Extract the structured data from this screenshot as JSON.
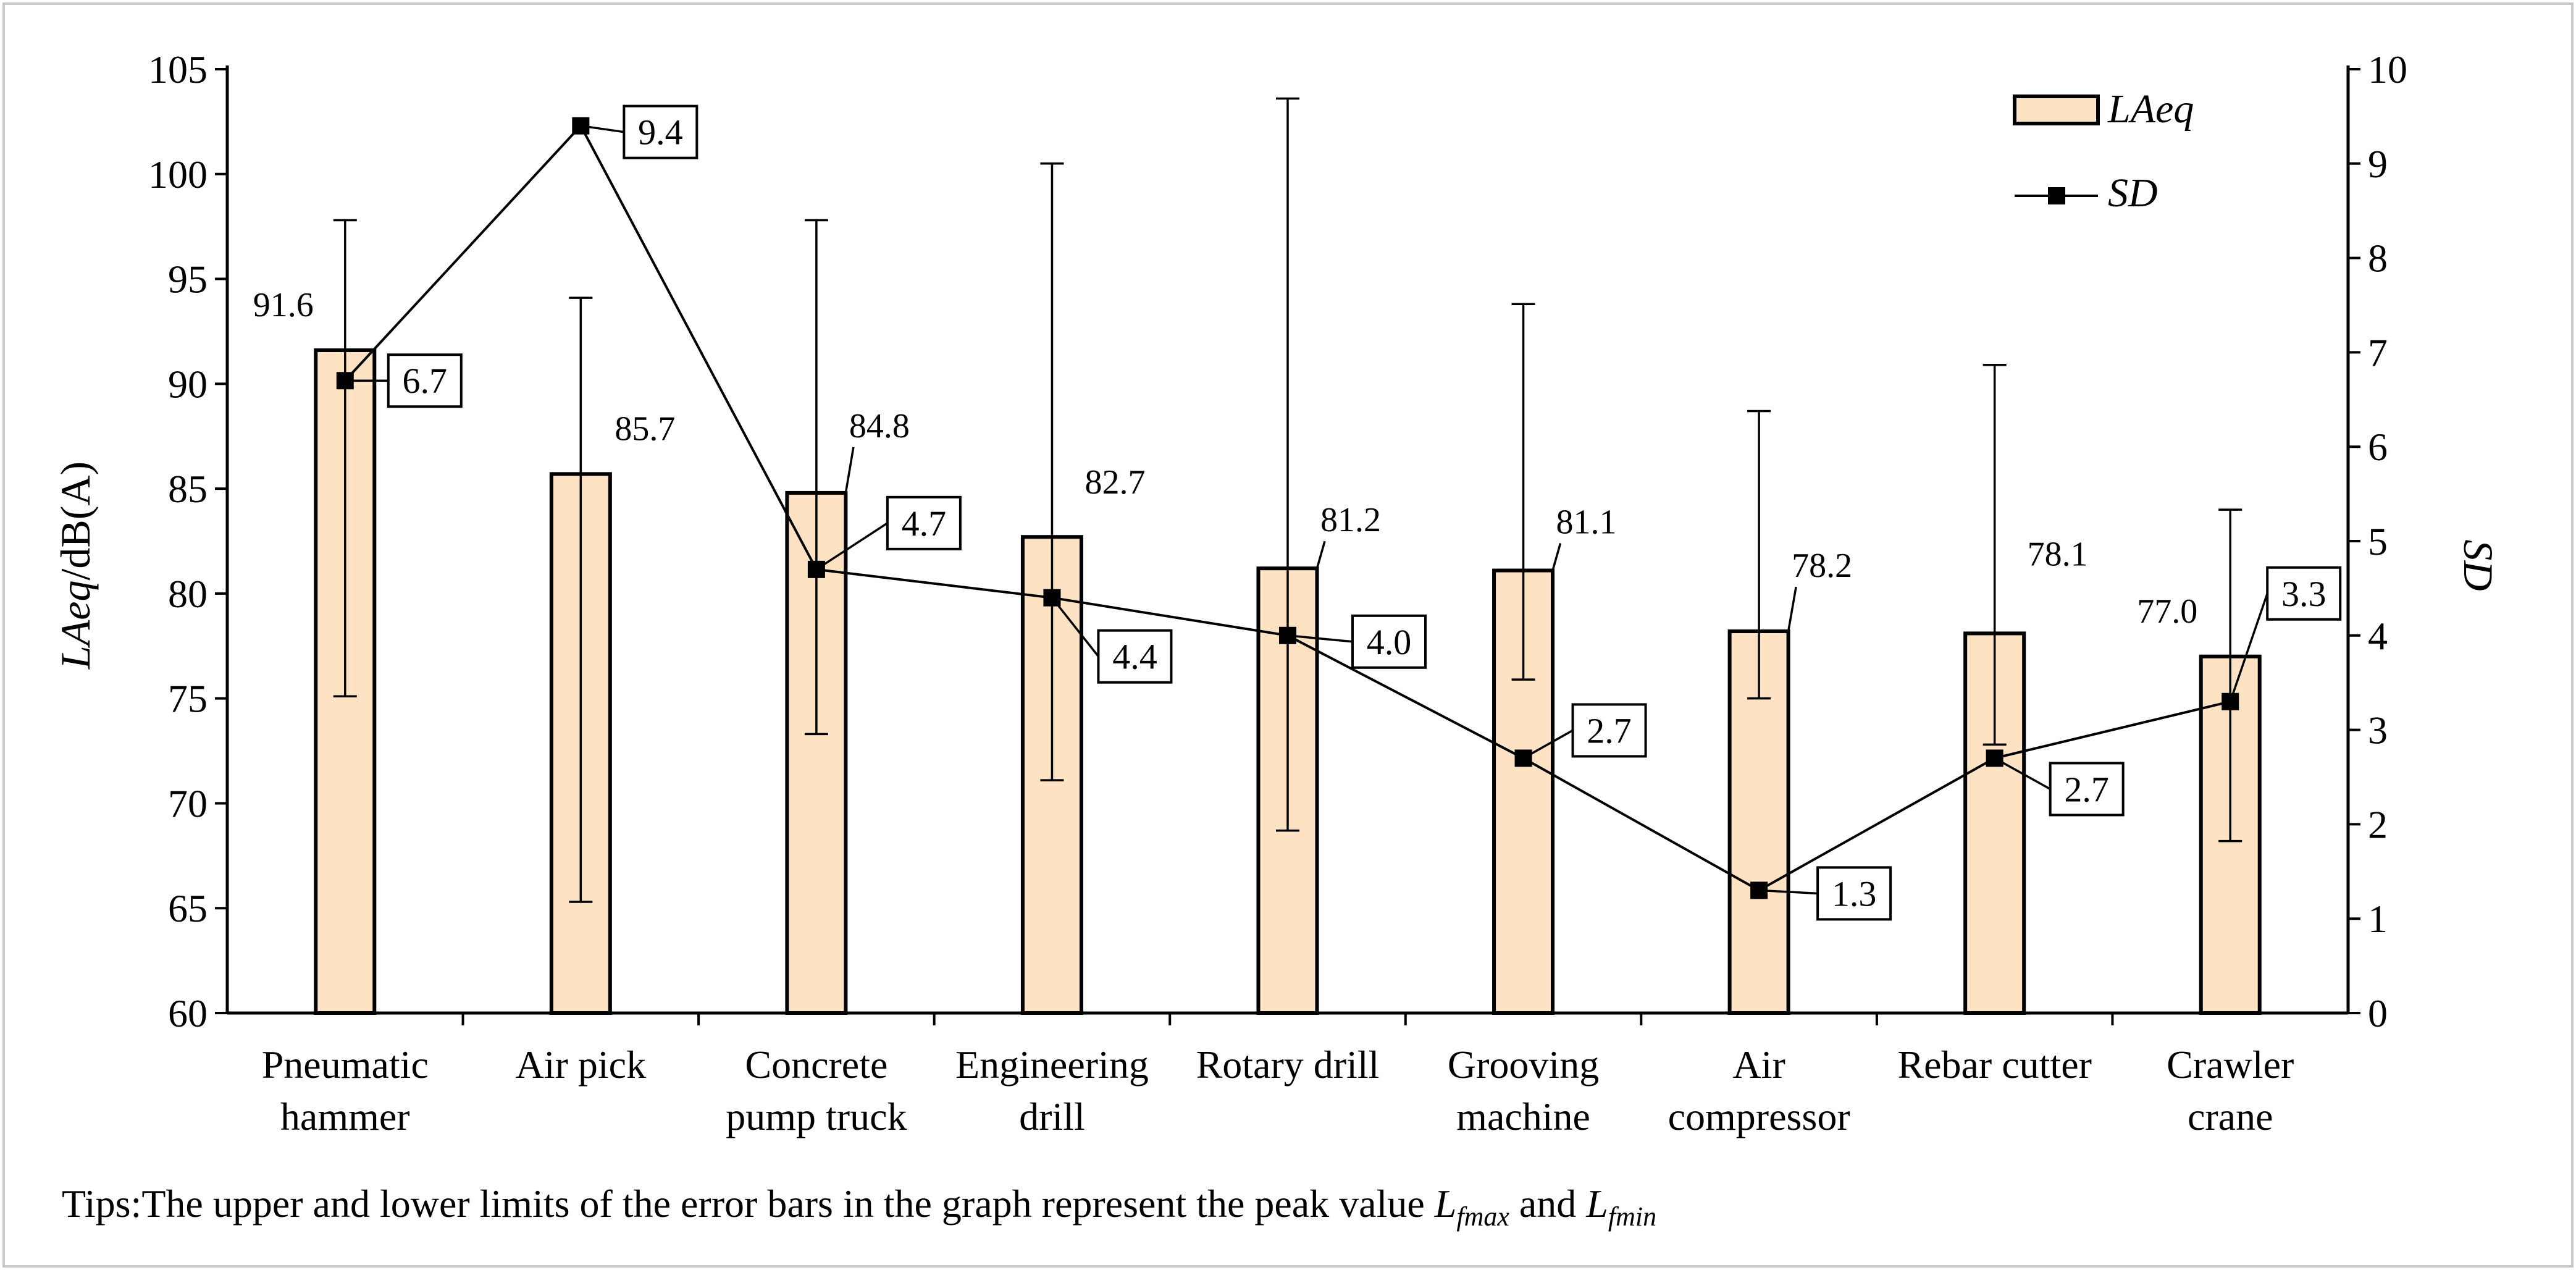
{
  "chart_data": {
    "type": "bar",
    "categories": [
      [
        "Pneumatic",
        "hammer"
      ],
      [
        "Air pick"
      ],
      [
        "Concrete",
        "pump truck"
      ],
      [
        "Engineering",
        "drill"
      ],
      [
        "Rotary drill"
      ],
      [
        "Grooving",
        "machine"
      ],
      [
        "Air",
        "compressor"
      ],
      [
        "Rebar cutter"
      ],
      [
        "Crawler",
        "crane"
      ]
    ],
    "series": [
      {
        "name": "LAeq",
        "axis": "left",
        "values": [
          91.6,
          85.7,
          84.8,
          82.7,
          81.2,
          81.1,
          78.2,
          78.1,
          77.0
        ],
        "labels": [
          "91.6",
          "85.7",
          "84.8",
          "82.7",
          "81.2",
          "81.1",
          "78.2",
          "78.1",
          "77.0"
        ],
        "error_max": [
          97.8,
          94.1,
          97.8,
          100.5,
          103.6,
          93.8,
          88.7,
          90.9,
          84.0
        ],
        "error_min": [
          75.1,
          65.3,
          73.3,
          71.1,
          68.7,
          75.9,
          75.0,
          72.8,
          68.2
        ]
      },
      {
        "name": "SD",
        "axis": "right",
        "type": "line",
        "values": [
          6.7,
          9.4,
          4.7,
          4.4,
          4.0,
          2.7,
          1.3,
          2.7,
          3.3
        ],
        "labels": [
          "6.7",
          "9.4",
          "4.7",
          "4.4",
          "4.0",
          "2.7",
          "1.3",
          "2.7",
          "3.3"
        ]
      }
    ],
    "ylabel_parts": [
      "LAeq",
      "/dB(A)"
    ],
    "y2label": "SD",
    "ylim": [
      60,
      105
    ],
    "yticks": [
      "60",
      "65",
      "70",
      "75",
      "80",
      "85",
      "90",
      "95",
      "100",
      "105"
    ],
    "y2lim": [
      0,
      10
    ],
    "y2ticks": [
      "0",
      "1",
      "2",
      "3",
      "4",
      "5",
      "6",
      "7",
      "8",
      "9",
      "10"
    ],
    "legend": [
      {
        "label": "LAeq",
        "marker": "bar"
      },
      {
        "label": "SD",
        "marker": "line-square"
      }
    ],
    "legend_position": "top-right",
    "grid": false,
    "bar_fill": "#fde3c4",
    "note": {
      "prefix": "Tips:The upper and lower limits of the error bars in the graph represent the peak value ",
      "sym1_main": "L",
      "sym1_sub": "fmax",
      "connector": " and ",
      "sym2_main": "L",
      "sym2_sub": "fmin"
    }
  }
}
